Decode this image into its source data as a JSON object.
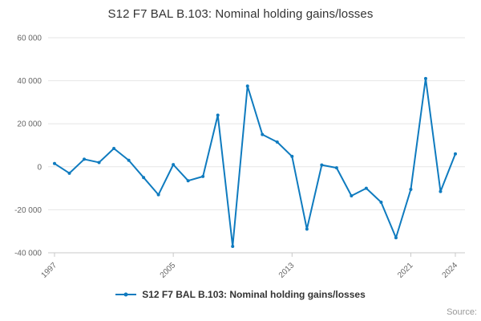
{
  "page": {
    "title": "S12 F7 BAL B.103: Nominal holding gains/losses",
    "legend_label": "S12 F7 BAL B.103: Nominal holding gains/losses",
    "source_label": "Source:"
  },
  "chart_data": {
    "type": "line",
    "title": "S12 F7 BAL B.103: Nominal holding gains/losses",
    "xlabel": "",
    "ylabel": "",
    "x": [
      1997,
      1998,
      1999,
      2000,
      2001,
      2002,
      2003,
      2004,
      2005,
      2006,
      2007,
      2008,
      2009,
      2010,
      2011,
      2012,
      2013,
      2014,
      2015,
      2016,
      2017,
      2018,
      2019,
      2020,
      2021,
      2022,
      2023,
      2024
    ],
    "values": [
      1500,
      -3000,
      3500,
      2000,
      8500,
      3000,
      -5000,
      -13000,
      1000,
      -6500,
      -4500,
      24000,
      -37000,
      37500,
      15000,
      11500,
      4800,
      -29000,
      800,
      -500,
      -13500,
      -10000,
      -16500,
      -33000,
      -10500,
      41000,
      -11500,
      6000
    ],
    "ylim": [
      -40000,
      60000
    ],
    "y_ticks": [
      60000,
      40000,
      20000,
      0,
      -20000,
      -40000
    ],
    "y_tick_labels": [
      "60 000",
      "40 000",
      "20 000",
      "0",
      "-20 000",
      "-40 000"
    ],
    "x_tick_labels": [
      "1997",
      "2005",
      "2013",
      "2021",
      "2024"
    ],
    "grid": "horizontal",
    "legend_position": "bottom",
    "line_color": "#0f7bbf",
    "grid_color": "#e6e6e6",
    "axis_color": "#c8c8c8",
    "tick_color": "#666666",
    "title_color": "#333333"
  }
}
